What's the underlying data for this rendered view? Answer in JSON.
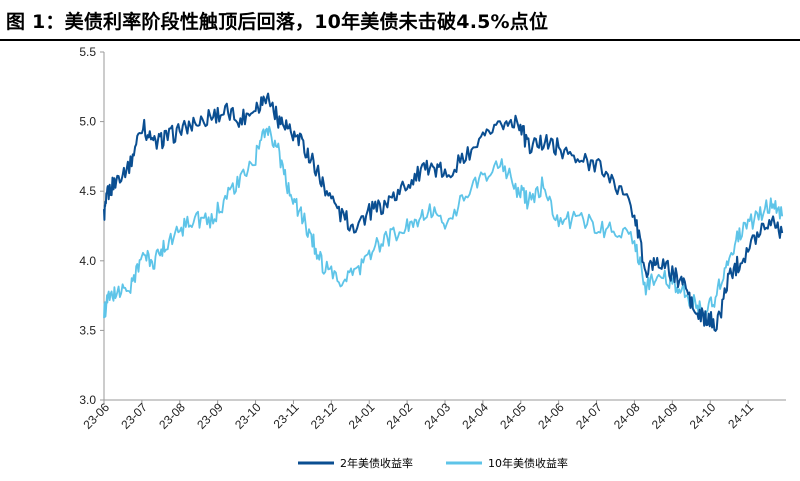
{
  "title": "图 1：美债利率阶段性触顶后回落，10年美债未击破4.5%点位",
  "colors": {
    "dark": "#0a4e91",
    "light": "#5ec4e8",
    "axis": "#999999"
  },
  "chart_data": {
    "type": "line",
    "title": "图 1：美债利率阶段性触顶后回落，10年美债未击破4.5%点位",
    "xlabel": "",
    "ylabel": "",
    "ylim": [
      3.0,
      5.5
    ],
    "yticks": [
      "3.0",
      "3.5",
      "4.0",
      "4.5",
      "5.0",
      "5.5"
    ],
    "xticks": [
      "23-06",
      "23-07",
      "23-08",
      "23-09",
      "23-10",
      "23-11",
      "23-12",
      "24-01",
      "24-02",
      "24-03",
      "24-04",
      "24-05",
      "24-06",
      "24-07",
      "24-08",
      "24-09",
      "24-10",
      "24-11"
    ],
    "x_unit": "month index (0 = 23-06 start, approximate, monthly)",
    "grid": false,
    "legend_position": "bottom",
    "series": [
      {
        "name": "2年美债收益率",
        "color": "#0a4e91",
        "x": [
          0,
          0.1,
          0.35,
          0.7,
          1.0,
          1.3,
          1.6,
          2.0,
          2.4,
          2.8,
          3.2,
          3.6,
          4.0,
          4.3,
          4.6,
          4.9,
          5.2,
          5.5,
          5.8,
          6.2,
          6.6,
          7.0,
          7.4,
          7.8,
          8.2,
          8.6,
          9.0,
          9.5,
          10.0,
          10.5,
          10.9,
          11.2,
          11.6,
          12.0,
          12.5,
          13.0,
          13.5,
          14.0,
          14.3,
          14.6,
          15.0,
          15.3,
          15.6,
          15.9,
          16.2,
          16.5,
          16.8,
          17.2,
          17.6,
          17.9
        ],
        "values": [
          4.33,
          4.48,
          4.6,
          4.7,
          4.98,
          4.84,
          4.88,
          4.93,
          4.98,
          5.04,
          5.07,
          5.02,
          5.1,
          5.19,
          5.02,
          4.93,
          4.85,
          4.72,
          4.55,
          4.35,
          4.24,
          4.35,
          4.4,
          4.5,
          4.6,
          4.67,
          4.63,
          4.73,
          4.86,
          4.96,
          5.03,
          4.82,
          4.85,
          4.82,
          4.72,
          4.7,
          4.55,
          4.35,
          3.9,
          4.02,
          3.9,
          3.85,
          3.62,
          3.58,
          3.55,
          3.9,
          4.0,
          4.18,
          4.32,
          4.2
        ]
      },
      {
        "name": "10年美债收益率",
        "color": "#5ec4e8",
        "x": [
          0,
          0.1,
          0.35,
          0.7,
          1.0,
          1.3,
          1.6,
          2.0,
          2.4,
          2.8,
          3.2,
          3.6,
          4.0,
          4.3,
          4.6,
          4.9,
          5.2,
          5.5,
          5.8,
          6.2,
          6.6,
          7.0,
          7.4,
          7.8,
          8.2,
          8.6,
          9.0,
          9.5,
          10.0,
          10.5,
          10.9,
          11.2,
          11.6,
          12.0,
          12.5,
          13.0,
          13.5,
          14.0,
          14.3,
          14.6,
          15.0,
          15.3,
          15.6,
          15.9,
          16.2,
          16.5,
          16.8,
          17.2,
          17.6,
          17.9
        ],
        "values": [
          3.62,
          3.72,
          3.78,
          3.8,
          4.05,
          3.98,
          4.12,
          4.22,
          4.32,
          4.26,
          4.45,
          4.58,
          4.74,
          4.98,
          4.78,
          4.48,
          4.33,
          4.15,
          3.95,
          3.85,
          3.9,
          4.05,
          4.15,
          4.2,
          4.28,
          4.35,
          4.28,
          4.46,
          4.6,
          4.68,
          4.52,
          4.42,
          4.55,
          4.28,
          4.3,
          4.25,
          4.2,
          4.15,
          3.8,
          3.92,
          3.85,
          3.8,
          3.68,
          3.62,
          3.78,
          4.05,
          4.2,
          4.3,
          4.42,
          4.32
        ]
      }
    ]
  },
  "legend": {
    "items": [
      "2年美债收益率",
      "10年美债收益率"
    ]
  }
}
